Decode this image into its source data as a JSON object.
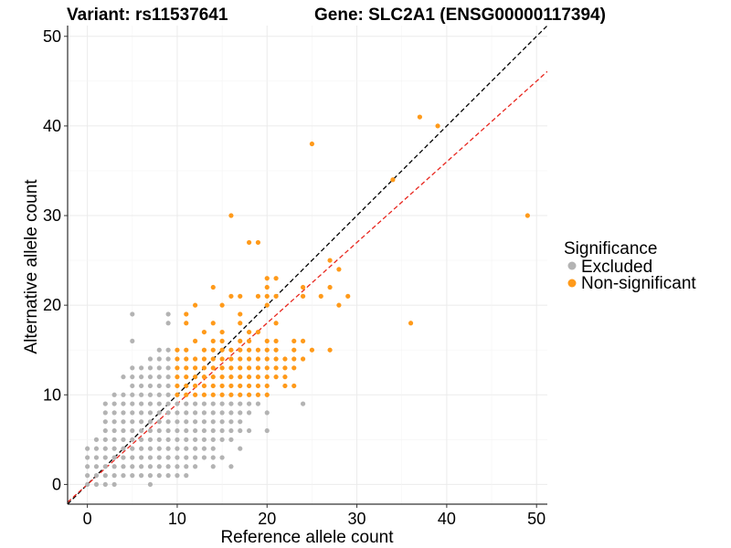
{
  "chart_data": {
    "type": "scatter",
    "title_left": "Variant: rs11537641",
    "title_right": "Gene: SLC2A1 (ENSG00000117394)",
    "xlabel": "Reference allele count",
    "ylabel": "Alternative allele count",
    "xlim": [
      -2.2,
      51.2
    ],
    "ylim": [
      -2.2,
      51.2
    ],
    "xticks": [
      0,
      10,
      20,
      30,
      40,
      50
    ],
    "yticks": [
      0,
      10,
      20,
      30,
      40,
      50
    ],
    "grid": true,
    "legend": {
      "title": "Significance",
      "placement": "right",
      "entries": [
        {
          "label": "Excluded",
          "color": "#b3b3b3"
        },
        {
          "label": "Non-significant",
          "color": "#ff9a1a"
        }
      ]
    },
    "reference_lines": [
      {
        "color": "#000000",
        "slope": 1,
        "intercept": 0,
        "dash": true
      },
      {
        "color": "#e8261e",
        "slope": 0.9,
        "intercept": 0,
        "dash": true
      }
    ],
    "series": [
      {
        "name": "Excluded",
        "color": "#b3b3b3",
        "points": [
          [
            0,
            0
          ],
          [
            0,
            1
          ],
          [
            0,
            2
          ],
          [
            0,
            3
          ],
          [
            0,
            4
          ],
          [
            1,
            0
          ],
          [
            1,
            1
          ],
          [
            1,
            2
          ],
          [
            1,
            3
          ],
          [
            1,
            4
          ],
          [
            1,
            5
          ],
          [
            2,
            0
          ],
          [
            2,
            1
          ],
          [
            2,
            2
          ],
          [
            2,
            3
          ],
          [
            2,
            4
          ],
          [
            2,
            5
          ],
          [
            2,
            6
          ],
          [
            2,
            7
          ],
          [
            2,
            8
          ],
          [
            2,
            9
          ],
          [
            3,
            0
          ],
          [
            3,
            1
          ],
          [
            3,
            2
          ],
          [
            3,
            3
          ],
          [
            3,
            4
          ],
          [
            3,
            5
          ],
          [
            3,
            6
          ],
          [
            3,
            7
          ],
          [
            3,
            8
          ],
          [
            3,
            9
          ],
          [
            3,
            10
          ],
          [
            4,
            1
          ],
          [
            4,
            2
          ],
          [
            4,
            3
          ],
          [
            4,
            4
          ],
          [
            4,
            5
          ],
          [
            4,
            6
          ],
          [
            4,
            7
          ],
          [
            4,
            8
          ],
          [
            4,
            9
          ],
          [
            4,
            10
          ],
          [
            4,
            12
          ],
          [
            5,
            1
          ],
          [
            5,
            2
          ],
          [
            5,
            3
          ],
          [
            5,
            4
          ],
          [
            5,
            5
          ],
          [
            5,
            6
          ],
          [
            5,
            7
          ],
          [
            5,
            8
          ],
          [
            5,
            9
          ],
          [
            5,
            10
          ],
          [
            5,
            11
          ],
          [
            5,
            12
          ],
          [
            5,
            13
          ],
          [
            5,
            16
          ],
          [
            5,
            19
          ],
          [
            6,
            1
          ],
          [
            6,
            2
          ],
          [
            6,
            3
          ],
          [
            6,
            4
          ],
          [
            6,
            5
          ],
          [
            6,
            6
          ],
          [
            6,
            7
          ],
          [
            6,
            8
          ],
          [
            6,
            9
          ],
          [
            6,
            10
          ],
          [
            6,
            11
          ],
          [
            6,
            12
          ],
          [
            6,
            13
          ],
          [
            7,
            0
          ],
          [
            7,
            1
          ],
          [
            7,
            2
          ],
          [
            7,
            3
          ],
          [
            7,
            4
          ],
          [
            7,
            5
          ],
          [
            7,
            6
          ],
          [
            7,
            7
          ],
          [
            7,
            8
          ],
          [
            7,
            9
          ],
          [
            7,
            10
          ],
          [
            7,
            11
          ],
          [
            7,
            12
          ],
          [
            7,
            13
          ],
          [
            7,
            14
          ],
          [
            8,
            1
          ],
          [
            8,
            2
          ],
          [
            8,
            3
          ],
          [
            8,
            4
          ],
          [
            8,
            5
          ],
          [
            8,
            6
          ],
          [
            8,
            7
          ],
          [
            8,
            8
          ],
          [
            8,
            9
          ],
          [
            8,
            10
          ],
          [
            8,
            11
          ],
          [
            8,
            12
          ],
          [
            8,
            13
          ],
          [
            8,
            14
          ],
          [
            8,
            15
          ],
          [
            9,
            1
          ],
          [
            9,
            2
          ],
          [
            9,
            3
          ],
          [
            9,
            4
          ],
          [
            9,
            5
          ],
          [
            9,
            6
          ],
          [
            9,
            7
          ],
          [
            9,
            8
          ],
          [
            9,
            9
          ],
          [
            9,
            10
          ],
          [
            9,
            11
          ],
          [
            9,
            12
          ],
          [
            9,
            13
          ],
          [
            9,
            14
          ],
          [
            9,
            15
          ],
          [
            9,
            18
          ],
          [
            9,
            19
          ],
          [
            10,
            1
          ],
          [
            10,
            2
          ],
          [
            10,
            3
          ],
          [
            10,
            4
          ],
          [
            10,
            5
          ],
          [
            10,
            6
          ],
          [
            10,
            7
          ],
          [
            10,
            8
          ],
          [
            10,
            9
          ],
          [
            11,
            1
          ],
          [
            11,
            2
          ],
          [
            11,
            3
          ],
          [
            11,
            4
          ],
          [
            11,
            5
          ],
          [
            11,
            6
          ],
          [
            11,
            7
          ],
          [
            11,
            8
          ],
          [
            11,
            9
          ],
          [
            12,
            2
          ],
          [
            12,
            3
          ],
          [
            12,
            4
          ],
          [
            12,
            5
          ],
          [
            12,
            6
          ],
          [
            12,
            7
          ],
          [
            12,
            8
          ],
          [
            12,
            9
          ],
          [
            13,
            3
          ],
          [
            13,
            4
          ],
          [
            13,
            5
          ],
          [
            13,
            6
          ],
          [
            13,
            7
          ],
          [
            13,
            8
          ],
          [
            13,
            9
          ],
          [
            14,
            2
          ],
          [
            14,
            3
          ],
          [
            14,
            4
          ],
          [
            14,
            5
          ],
          [
            14,
            6
          ],
          [
            14,
            7
          ],
          [
            14,
            8
          ],
          [
            14,
            9
          ],
          [
            15,
            3
          ],
          [
            15,
            5
          ],
          [
            15,
            6
          ],
          [
            15,
            7
          ],
          [
            15,
            8
          ],
          [
            15,
            9
          ],
          [
            16,
            2
          ],
          [
            16,
            5
          ],
          [
            16,
            6
          ],
          [
            16,
            7
          ],
          [
            16,
            8
          ],
          [
            16,
            9
          ],
          [
            17,
            4
          ],
          [
            17,
            6
          ],
          [
            17,
            7
          ],
          [
            17,
            8
          ],
          [
            17,
            9
          ],
          [
            18,
            6
          ],
          [
            18,
            8
          ],
          [
            18,
            9
          ],
          [
            19,
            9
          ],
          [
            20,
            6
          ],
          [
            20,
            8
          ],
          [
            24,
            9
          ]
        ]
      },
      {
        "name": "Non-significant",
        "color": "#ff9a1a",
        "points": [
          [
            10,
            10
          ],
          [
            10,
            11
          ],
          [
            10,
            12
          ],
          [
            10,
            13
          ],
          [
            10,
            14
          ],
          [
            10,
            15
          ],
          [
            11,
            10
          ],
          [
            11,
            11
          ],
          [
            11,
            12
          ],
          [
            11,
            13
          ],
          [
            11,
            14
          ],
          [
            11,
            15
          ],
          [
            11,
            18
          ],
          [
            11,
            19
          ],
          [
            12,
            10
          ],
          [
            12,
            11
          ],
          [
            12,
            12
          ],
          [
            12,
            13
          ],
          [
            12,
            14
          ],
          [
            12,
            16
          ],
          [
            12,
            20
          ],
          [
            13,
            10
          ],
          [
            13,
            11
          ],
          [
            13,
            12
          ],
          [
            13,
            13
          ],
          [
            13,
            14
          ],
          [
            13,
            15
          ],
          [
            13,
            17
          ],
          [
            14,
            10
          ],
          [
            14,
            11
          ],
          [
            14,
            12
          ],
          [
            14,
            13
          ],
          [
            14,
            14
          ],
          [
            14,
            15
          ],
          [
            14,
            16
          ],
          [
            14,
            18
          ],
          [
            14,
            22
          ],
          [
            15,
            10
          ],
          [
            15,
            11
          ],
          [
            15,
            12
          ],
          [
            15,
            13
          ],
          [
            15,
            14
          ],
          [
            15,
            15
          ],
          [
            15,
            16
          ],
          [
            15,
            17
          ],
          [
            15,
            20
          ],
          [
            16,
            10
          ],
          [
            16,
            11
          ],
          [
            16,
            12
          ],
          [
            16,
            13
          ],
          [
            16,
            14
          ],
          [
            16,
            15
          ],
          [
            16,
            21
          ],
          [
            16,
            30
          ],
          [
            17,
            10
          ],
          [
            17,
            11
          ],
          [
            17,
            12
          ],
          [
            17,
            13
          ],
          [
            17,
            14
          ],
          [
            17,
            15
          ],
          [
            17,
            16
          ],
          [
            17,
            18
          ],
          [
            17,
            19
          ],
          [
            17,
            21
          ],
          [
            18,
            10
          ],
          [
            18,
            11
          ],
          [
            18,
            12
          ],
          [
            18,
            13
          ],
          [
            18,
            14
          ],
          [
            18,
            15
          ],
          [
            18,
            16
          ],
          [
            18,
            17
          ],
          [
            18,
            27
          ],
          [
            19,
            10
          ],
          [
            19,
            11
          ],
          [
            19,
            12
          ],
          [
            19,
            13
          ],
          [
            19,
            14
          ],
          [
            19,
            15
          ],
          [
            19,
            17
          ],
          [
            19,
            21
          ],
          [
            19,
            27
          ],
          [
            20,
            10
          ],
          [
            20,
            11
          ],
          [
            20,
            12
          ],
          [
            20,
            13
          ],
          [
            20,
            14
          ],
          [
            20,
            15
          ],
          [
            20,
            16
          ],
          [
            20,
            20
          ],
          [
            20,
            21
          ],
          [
            20,
            22
          ],
          [
            20,
            23
          ],
          [
            21,
            12
          ],
          [
            21,
            13
          ],
          [
            21,
            14
          ],
          [
            21,
            15
          ],
          [
            21,
            16
          ],
          [
            21,
            18
          ],
          [
            21,
            21
          ],
          [
            21,
            23
          ],
          [
            22,
            11
          ],
          [
            22,
            12
          ],
          [
            22,
            13
          ],
          [
            22,
            14
          ],
          [
            23,
            11
          ],
          [
            23,
            13
          ],
          [
            23,
            14
          ],
          [
            23,
            15
          ],
          [
            23,
            16
          ],
          [
            24,
            14
          ],
          [
            24,
            16
          ],
          [
            24,
            21
          ],
          [
            24,
            22
          ],
          [
            25,
            15
          ],
          [
            25,
            38
          ],
          [
            26,
            21
          ],
          [
            27,
            15
          ],
          [
            27,
            22
          ],
          [
            27,
            25
          ],
          [
            28,
            20
          ],
          [
            28,
            24
          ],
          [
            29,
            21
          ],
          [
            34,
            34
          ],
          [
            36,
            18
          ],
          [
            37,
            41
          ],
          [
            39,
            40
          ],
          [
            49,
            30
          ]
        ]
      }
    ]
  }
}
